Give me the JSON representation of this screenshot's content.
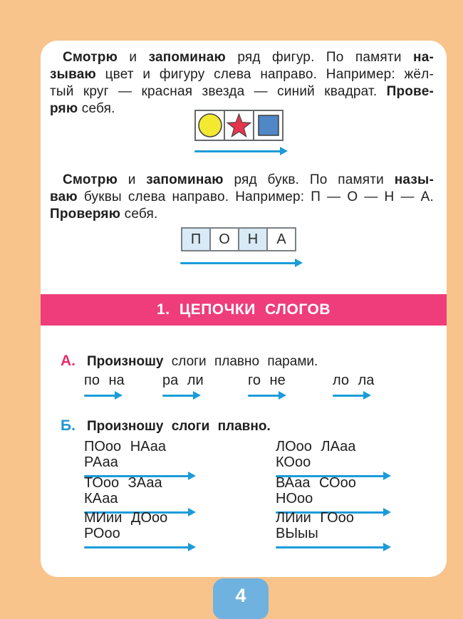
{
  "colors": {
    "background_orange": "#F8C48C",
    "page_white": "#FFFFFF",
    "banner_pink": "#EE3D7A",
    "arrow_blue": "#1B9CD8",
    "label_a_pink": "#E62D6E",
    "label_b_blue": "#2196D2",
    "letter_cell_tint": "#D8EAF6",
    "circle_yellow": "#F2E930",
    "star_red": "#E6344B",
    "square_blue": "#4F87C7",
    "page_number_blue": "#6FB2DF",
    "text": "#1E1E1E"
  },
  "memory_exercise_figures": {
    "lines": [
      [
        {
          "t": "Смотрю",
          "b": 1
        },
        {
          "t": " и ",
          "b": 0
        },
        {
          "t": "запоминаю",
          "b": 1
        },
        {
          "t": " ряд фигур. По памяти ",
          "b": 0
        },
        {
          "t": "на-",
          "b": 1
        }
      ],
      [
        {
          "t": "зываю",
          "b": 1
        },
        {
          "t": " цвет и фигуру слева направо. Например: жёл-",
          "b": 0
        }
      ],
      [
        {
          "t": "тый круг — красная звезда — синий квадрат. ",
          "b": 0
        },
        {
          "t": "Прове-",
          "b": 1
        }
      ],
      [
        {
          "t": "ряю",
          "b": 1
        },
        {
          "t": " себя.",
          "b": 0
        }
      ]
    ],
    "figures": [
      "yellow-circle",
      "red-star",
      "blue-square"
    ]
  },
  "memory_exercise_letters": {
    "lines": [
      [
        {
          "t": "Смотрю",
          "b": 1
        },
        {
          "t": " и ",
          "b": 0
        },
        {
          "t": "запоминаю",
          "b": 1
        },
        {
          "t": " ряд букв. По памяти ",
          "b": 0
        },
        {
          "t": "назы-",
          "b": 1
        }
      ],
      [
        {
          "t": "ваю",
          "b": 1
        },
        {
          "t": " буквы слева направо. Например: П — О — Н — А.",
          "b": 0
        }
      ],
      [
        {
          "t": "Проверяю",
          "b": 1
        },
        {
          "t": " себя.",
          "b": 0
        }
      ]
    ],
    "letters": [
      "П",
      "О",
      "Н",
      "А"
    ]
  },
  "banner": {
    "title": "1. ЦЕПОЧКИ СЛОГОВ"
  },
  "section_a": {
    "label": "А.",
    "heading": [
      {
        "t": "Произношу",
        "b": 1
      },
      {
        "t": " слоги плавно парами.",
        "b": 0
      }
    ],
    "pairs": [
      "по на",
      "ра ли",
      "го не",
      "ло ла"
    ]
  },
  "section_b": {
    "label": "Б.",
    "heading": [
      {
        "t": "Произношу",
        "b": 1
      },
      {
        "t": " слоги плавно.",
        "b": 0
      }
    ],
    "groups": [
      {
        "col": "left",
        "text": "ПОоо НАаа РАаа"
      },
      {
        "col": "right",
        "text": "ЛОоо ЛАаа КОоо"
      },
      {
        "col": "left",
        "text": "ТОоо ЗАаа КАаа"
      },
      {
        "col": "right",
        "text": "ВАаа СОоо НОоо"
      },
      {
        "col": "left",
        "text": "МИии ДОоо РОоо"
      },
      {
        "col": "right",
        "text": "ЛИии ГОоо ВЫыы"
      }
    ]
  },
  "footer": {
    "page_number": "4"
  }
}
